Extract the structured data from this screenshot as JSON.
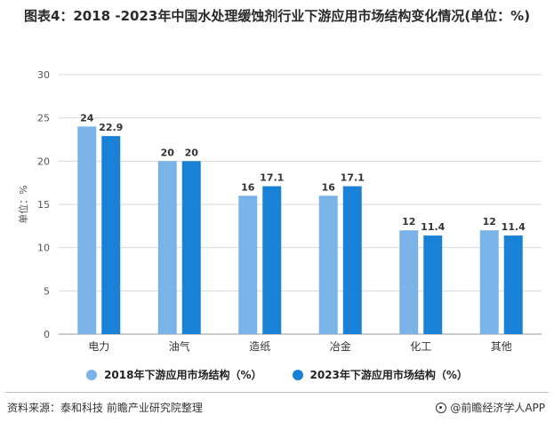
{
  "title": "图表4：2018 -2023年中国水处理缓蚀剂行业下游应用市场结构变化情况(单位：%)",
  "source": "资料来源：泰和科技 前瞻产业研究院整理",
  "brand": "@前瞻经济学人APP",
  "colors": {
    "series_2018": "#7ab3e8",
    "series_2023": "#1a82d6",
    "grid": "#d9d9d9",
    "axis": "#999999"
  },
  "chart_data": {
    "type": "bar",
    "categories": [
      "电力",
      "油气",
      "造纸",
      "冶金",
      "化工",
      "其他"
    ],
    "series": [
      {
        "name": "2018年下游应用市场结构（%）",
        "values": [
          24,
          20,
          16,
          16,
          12,
          12
        ]
      },
      {
        "name": "2023年下游应用市场结构（%）",
        "values": [
          22.9,
          20,
          17.1,
          17.1,
          11.4,
          11.4
        ]
      }
    ],
    "ylabel": "单位：%",
    "ylim": [
      0,
      30
    ],
    "yticks": [
      0,
      5,
      10,
      15,
      20,
      25,
      30
    ],
    "grid": true,
    "legend_position": "bottom"
  }
}
